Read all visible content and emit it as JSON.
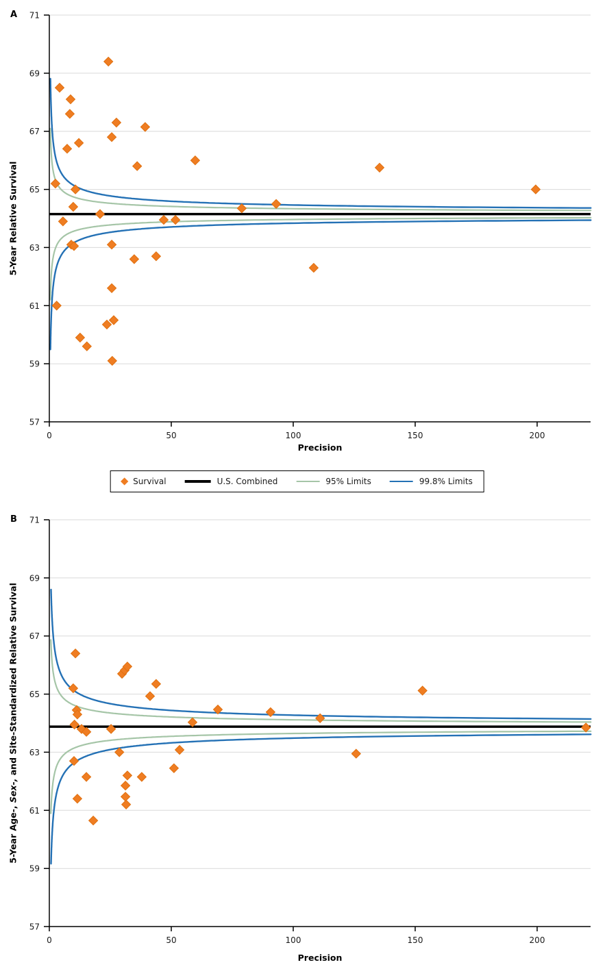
{
  "colors": {
    "survival": "#EF7D22",
    "survival_edge": "#E0700F",
    "us_combined": "#000000",
    "limit95": "#A5C5A7",
    "limit998": "#2471B5",
    "grid": "#D9D9D9",
    "axis": "#000000",
    "text": "#1a1a1a"
  },
  "legend": {
    "items": [
      {
        "label": "Survival",
        "swatch": "survival",
        "type": "diamond"
      },
      {
        "label": "U.S. Combined",
        "swatch": "us_combined",
        "type": "thick-line"
      },
      {
        "label": "95% Limits",
        "swatch": "limit95",
        "type": "line"
      },
      {
        "label": "99.8% Limits",
        "swatch": "limit998",
        "type": "line"
      }
    ]
  },
  "chart_data": [
    {
      "type": "scatter",
      "panel_label": "A",
      "xlabel": "Precision",
      "ylabel": "5-Year Relative Survival",
      "xlim": [
        0,
        222
      ],
      "ylim": [
        57,
        71
      ],
      "x_ticks": [
        0,
        50,
        100,
        150,
        200
      ],
      "y_ticks": [
        57,
        59,
        61,
        63,
        65,
        67,
        69,
        71
      ],
      "y_gridlines": [
        59,
        61,
        63,
        65,
        67,
        69,
        71
      ],
      "grid": true,
      "us_combined": 64.15,
      "limits": {
        "s": 0.95,
        "z_95": 1.96,
        "z_998": 3.29,
        "x_start_95": 0.4,
        "x_start_998": 0.45
      },
      "series": [
        {
          "name": "Survival",
          "points": [
            [
              2.5,
              65.2
            ],
            [
              3,
              61.0
            ],
            [
              4.2,
              68.5
            ],
            [
              5.6,
              63.9
            ],
            [
              7.3,
              66.4
            ],
            [
              8.4,
              67.6
            ],
            [
              8.7,
              68.1
            ],
            [
              9,
              63.1
            ],
            [
              9.8,
              64.4
            ],
            [
              10.1,
              63.05
            ],
            [
              10.7,
              65.0
            ],
            [
              12.1,
              66.6
            ],
            [
              12.6,
              59.9
            ],
            [
              15.4,
              59.6
            ],
            [
              20.8,
              64.15
            ],
            [
              23.6,
              60.35
            ],
            [
              24.2,
              69.4
            ],
            [
              25.6,
              66.8
            ],
            [
              25.6,
              63.1
            ],
            [
              25.6,
              61.6
            ],
            [
              25.8,
              59.1
            ],
            [
              26.4,
              60.5
            ],
            [
              27.5,
              67.3
            ],
            [
              34.8,
              62.6
            ],
            [
              36,
              65.8
            ],
            [
              39.3,
              67.15
            ],
            [
              43.8,
              62.7
            ],
            [
              46.9,
              63.95
            ],
            [
              51.7,
              63.95
            ],
            [
              59.8,
              66.0
            ],
            [
              78.9,
              64.35
            ],
            [
              93,
              64.5
            ],
            [
              108.4,
              62.3
            ],
            [
              135.4,
              65.75
            ],
            [
              199.4,
              65.0
            ]
          ]
        }
      ]
    },
    {
      "type": "scatter",
      "panel_label": "B",
      "xlabel": "Precision",
      "ylabel": "5-Year Age-, Sex-, and Site-Standardized Relative Survival",
      "ylabel_parts": [
        "5-Year Age-, ",
        "Sex-,",
        " and Site-Standardized Relative Survival"
      ],
      "xlim": [
        0,
        222
      ],
      "ylim": [
        57,
        71
      ],
      "x_ticks": [
        0,
        50,
        100,
        150,
        200
      ],
      "y_ticks": [
        57,
        59,
        61,
        63,
        65,
        67,
        69,
        71
      ],
      "y_gridlines": [
        59,
        61,
        63,
        65,
        67,
        69,
        71
      ],
      "grid": true,
      "us_combined": 63.88,
      "limits": {
        "s": 1.2,
        "z_95": 1.96,
        "z_998": 3.29,
        "x_start_95": 0.62,
        "x_start_998": 0.7
      },
      "series": [
        {
          "name": "Survival",
          "points": [
            [
              9.8,
              65.2
            ],
            [
              10.1,
              62.7
            ],
            [
              10.3,
              63.95
            ],
            [
              10.7,
              66.4
            ],
            [
              11.2,
              64.45
            ],
            [
              11.5,
              64.3
            ],
            [
              11.5,
              61.4
            ],
            [
              13.2,
              63.8
            ],
            [
              15.2,
              63.7
            ],
            [
              15.2,
              62.15
            ],
            [
              18,
              60.65
            ],
            [
              25.3,
              63.8
            ],
            [
              28.7,
              63.0
            ],
            [
              29.8,
              65.7
            ],
            [
              30.9,
              65.82
            ],
            [
              32,
              65.95
            ],
            [
              31.2,
              61.85
            ],
            [
              31.2,
              61.47
            ],
            [
              31.5,
              61.2
            ],
            [
              32,
              62.2
            ],
            [
              37.9,
              62.15
            ],
            [
              41.3,
              64.93
            ],
            [
              43.8,
              65.35
            ],
            [
              51.1,
              62.45
            ],
            [
              53.4,
              63.08
            ],
            [
              58.7,
              64.03
            ],
            [
              69.1,
              64.47
            ],
            [
              90.7,
              64.38
            ],
            [
              111,
              64.17
            ],
            [
              125.8,
              62.95
            ],
            [
              153,
              65.12
            ],
            [
              220,
              63.85
            ]
          ]
        }
      ]
    }
  ]
}
